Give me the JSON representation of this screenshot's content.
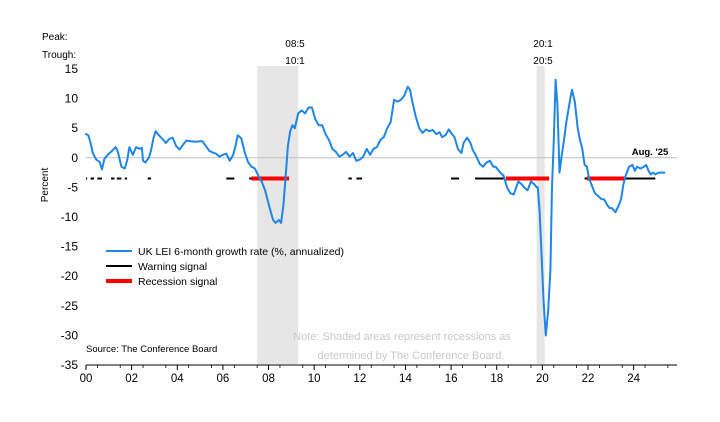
{
  "chart_data": {
    "type": "line",
    "ylabel": "Percent",
    "ylim": [
      -35,
      15
    ],
    "yticks": [
      15,
      10,
      5,
      0,
      -5,
      -10,
      -15,
      -20,
      -25,
      -30,
      -35
    ],
    "xlim": [
      2000,
      2025.9
    ],
    "xticks": [
      {
        "x": 2000,
        "label": "00"
      },
      {
        "x": 2002,
        "label": "02"
      },
      {
        "x": 2004,
        "label": "04"
      },
      {
        "x": 2006,
        "label": "06"
      },
      {
        "x": 2008,
        "label": "08"
      },
      {
        "x": 2010,
        "label": "10"
      },
      {
        "x": 2012,
        "label": "12"
      },
      {
        "x": 2014,
        "label": "14"
      },
      {
        "x": 2016,
        "label": "16"
      },
      {
        "x": 2018,
        "label": "18"
      },
      {
        "x": 2020,
        "label": "20"
      },
      {
        "x": 2022,
        "label": "22"
      },
      {
        "x": 2024,
        "label": "24"
      }
    ],
    "peak_trough_labels": [
      "Peak:",
      "Trough:"
    ],
    "recessions": [
      {
        "start": 2007.5,
        "end": 2009.3,
        "peak": "08:5",
        "trough": "10:1"
      },
      {
        "start": 2019.75,
        "end": 2020.1,
        "peak": "20:1",
        "trough": "20:5"
      }
    ],
    "series": [
      {
        "name": "UK LEI 6-month growth rate (%, annualized)",
        "color": "#1f86e3",
        "points": [
          [
            2000.0,
            4
          ],
          [
            2000.1,
            3.8
          ],
          [
            2000.2,
            2.5
          ],
          [
            2000.3,
            0.8
          ],
          [
            2000.45,
            -0.3
          ],
          [
            2000.6,
            -0.7
          ],
          [
            2000.7,
            -2
          ],
          [
            2000.8,
            -0.2
          ],
          [
            2000.95,
            0.5
          ],
          [
            2001.15,
            1.2
          ],
          [
            2001.3,
            1.8
          ],
          [
            2001.4,
            1
          ],
          [
            2001.55,
            -1.5
          ],
          [
            2001.7,
            -1.8
          ],
          [
            2001.8,
            -0.5
          ],
          [
            2001.9,
            1.8
          ],
          [
            2002.05,
            0.5
          ],
          [
            2002.2,
            1.8
          ],
          [
            2002.35,
            1.5
          ],
          [
            2002.45,
            1.7
          ],
          [
            2002.5,
            -0.5
          ],
          [
            2002.6,
            -0.8
          ],
          [
            2002.75,
            0
          ],
          [
            2002.85,
            1.2
          ],
          [
            2002.95,
            3.2
          ],
          [
            2003.05,
            4.5
          ],
          [
            2003.2,
            3.8
          ],
          [
            2003.35,
            3.2
          ],
          [
            2003.5,
            2.5
          ],
          [
            2003.65,
            3.2
          ],
          [
            2003.8,
            3.4
          ],
          [
            2003.95,
            2
          ],
          [
            2004.1,
            1.4
          ],
          [
            2004.25,
            2.2
          ],
          [
            2004.4,
            2.9
          ],
          [
            2004.6,
            2.8
          ],
          [
            2004.8,
            2.7
          ],
          [
            2005.0,
            2.8
          ],
          [
            2005.1,
            2.8
          ],
          [
            2005.25,
            2
          ],
          [
            2005.4,
            1.2
          ],
          [
            2005.55,
            0.9
          ],
          [
            2005.7,
            0.7
          ],
          [
            2005.85,
            0.2
          ],
          [
            2006.0,
            0.5
          ],
          [
            2006.15,
            0.7
          ],
          [
            2006.3,
            -0.5
          ],
          [
            2006.45,
            0.5
          ],
          [
            2006.55,
            2
          ],
          [
            2006.65,
            3.8
          ],
          [
            2006.8,
            3.3
          ],
          [
            2006.95,
            1
          ],
          [
            2007.1,
            -0.7
          ],
          [
            2007.25,
            -1.5
          ],
          [
            2007.4,
            -1.8
          ],
          [
            2007.55,
            -3
          ],
          [
            2007.7,
            -4
          ],
          [
            2007.85,
            -5.5
          ],
          [
            2007.95,
            -7
          ],
          [
            2008.05,
            -8.5
          ],
          [
            2008.2,
            -10.5
          ],
          [
            2008.3,
            -11
          ],
          [
            2008.45,
            -10.5
          ],
          [
            2008.55,
            -11
          ],
          [
            2008.65,
            -8
          ],
          [
            2008.75,
            -3
          ],
          [
            2008.85,
            2
          ],
          [
            2008.95,
            4.5
          ],
          [
            2009.05,
            5.5
          ],
          [
            2009.15,
            5
          ],
          [
            2009.3,
            7.5
          ],
          [
            2009.45,
            8
          ],
          [
            2009.6,
            7.5
          ],
          [
            2009.75,
            8.5
          ],
          [
            2009.9,
            8.5
          ],
          [
            2010.05,
            6.5
          ],
          [
            2010.2,
            5.5
          ],
          [
            2010.35,
            5.5
          ],
          [
            2010.5,
            4
          ],
          [
            2010.65,
            3
          ],
          [
            2010.8,
            1.5
          ],
          [
            2010.95,
            1
          ],
          [
            2011.1,
            0.2
          ],
          [
            2011.25,
            0.5
          ],
          [
            2011.4,
            1
          ],
          [
            2011.55,
            0.2
          ],
          [
            2011.7,
            0.8
          ],
          [
            2011.85,
            -0.5
          ],
          [
            2012.0,
            -0.3
          ],
          [
            2012.15,
            0.2
          ],
          [
            2012.3,
            1.5
          ],
          [
            2012.45,
            0.5
          ],
          [
            2012.6,
            1.5
          ],
          [
            2012.75,
            1.8
          ],
          [
            2012.9,
            3
          ],
          [
            2013.05,
            3.5
          ],
          [
            2013.2,
            5
          ],
          [
            2013.35,
            6
          ],
          [
            2013.5,
            9.8
          ],
          [
            2013.65,
            9.5
          ],
          [
            2013.8,
            9.8
          ],
          [
            2013.95,
            10.5
          ],
          [
            2014.1,
            12
          ],
          [
            2014.2,
            11.5
          ],
          [
            2014.3,
            9.5
          ],
          [
            2014.45,
            7
          ],
          [
            2014.6,
            5
          ],
          [
            2014.75,
            4.2
          ],
          [
            2014.9,
            4.8
          ],
          [
            2015.05,
            4.5
          ],
          [
            2015.2,
            4.7
          ],
          [
            2015.35,
            4
          ],
          [
            2015.5,
            4.3
          ],
          [
            2015.6,
            3.5
          ],
          [
            2015.75,
            3.8
          ],
          [
            2015.9,
            4.8
          ],
          [
            2016.0,
            4.2
          ],
          [
            2016.15,
            3.5
          ],
          [
            2016.3,
            1.5
          ],
          [
            2016.45,
            0.8
          ],
          [
            2016.55,
            2.5
          ],
          [
            2016.7,
            3.4
          ],
          [
            2016.85,
            2.5
          ],
          [
            2016.95,
            1.3
          ],
          [
            2017.1,
            0.3
          ],
          [
            2017.25,
            -1
          ],
          [
            2017.4,
            -1.5
          ],
          [
            2017.55,
            -0.8
          ],
          [
            2017.7,
            -0.5
          ],
          [
            2017.85,
            -1.5
          ],
          [
            2017.95,
            -1.5
          ],
          [
            2018.05,
            -2
          ],
          [
            2018.15,
            -2.5
          ],
          [
            2018.3,
            -3
          ],
          [
            2018.45,
            -5
          ],
          [
            2018.6,
            -6
          ],
          [
            2018.75,
            -6.2
          ],
          [
            2018.85,
            -5
          ],
          [
            2018.95,
            -4
          ],
          [
            2019.1,
            -4.5
          ],
          [
            2019.2,
            -5
          ],
          [
            2019.35,
            -5.5
          ],
          [
            2019.5,
            -4
          ],
          [
            2019.65,
            -4.5
          ],
          [
            2019.75,
            -5
          ],
          [
            2019.8,
            -5
          ],
          [
            2019.88,
            -9
          ],
          [
            2019.95,
            -15
          ],
          [
            2020.05,
            -24
          ],
          [
            2020.15,
            -30
          ],
          [
            2020.25,
            -26
          ],
          [
            2020.35,
            -19
          ],
          [
            2020.42,
            -5
          ],
          [
            2020.5,
            3
          ],
          [
            2020.58,
            13.2
          ],
          [
            2020.66,
            9
          ],
          [
            2020.75,
            -2.5
          ],
          [
            2020.85,
            0.5
          ],
          [
            2020.95,
            3
          ],
          [
            2021.05,
            6
          ],
          [
            2021.2,
            9.5
          ],
          [
            2021.3,
            11.5
          ],
          [
            2021.42,
            9.5
          ],
          [
            2021.55,
            5
          ],
          [
            2021.65,
            3
          ],
          [
            2021.75,
            1.5
          ],
          [
            2021.85,
            -1.2
          ],
          [
            2021.95,
            -1.5
          ],
          [
            2022.05,
            -3.5
          ],
          [
            2022.15,
            -4.5
          ],
          [
            2022.3,
            -6
          ],
          [
            2022.45,
            -6.5
          ],
          [
            2022.6,
            -7
          ],
          [
            2022.7,
            -7
          ],
          [
            2022.85,
            -8
          ],
          [
            2022.95,
            -8.5
          ],
          [
            2023.05,
            -8.5
          ],
          [
            2023.2,
            -9.2
          ],
          [
            2023.35,
            -8
          ],
          [
            2023.45,
            -7
          ],
          [
            2023.55,
            -4.5
          ],
          [
            2023.65,
            -3
          ],
          [
            2023.8,
            -1.5
          ],
          [
            2023.95,
            -1.2
          ],
          [
            2024.05,
            -2.2
          ],
          [
            2024.15,
            -1.5
          ],
          [
            2024.3,
            -1.8
          ],
          [
            2024.45,
            -1.5
          ],
          [
            2024.55,
            -1.2
          ],
          [
            2024.65,
            -2.2
          ],
          [
            2024.75,
            -2.8
          ],
          [
            2024.85,
            -2.5
          ],
          [
            2024.95,
            -2.8
          ],
          [
            2025.1,
            -2.5
          ],
          [
            2025.35,
            -2.5
          ]
        ]
      },
      {
        "name": "Warning signal",
        "color": "#000000",
        "value": -3.5,
        "segments": [
          [
            2000.0,
            2000.05
          ],
          [
            2000.2,
            2000.35
          ],
          [
            2000.5,
            2000.7
          ],
          [
            2001.1,
            2001.25
          ],
          [
            2001.35,
            2001.55
          ],
          [
            2001.7,
            2001.8
          ],
          [
            2002.7,
            2002.85
          ],
          [
            2006.15,
            2006.5
          ],
          [
            2007.15,
            2007.5
          ],
          [
            2011.5,
            2011.65
          ],
          [
            2011.85,
            2012.1
          ],
          [
            2016.0,
            2016.35
          ],
          [
            2017.05,
            2018.35
          ],
          [
            2021.85,
            2023.45
          ],
          [
            2023.55,
            2024.95
          ]
        ]
      },
      {
        "name": "Recession signal",
        "color": "#ff0000",
        "value": -3.5,
        "segments": [
          [
            2007.25,
            2008.9
          ],
          [
            2018.4,
            2020.3
          ],
          [
            2021.95,
            2023.65
          ]
        ]
      }
    ],
    "annotation": {
      "text": "Aug. '25",
      "x": 2025.0,
      "y": 0.2
    },
    "note": [
      "Note: Shaded areas represent recessions as",
      "determined by The Conference Board."
    ],
    "source": "Source: The Conference Board"
  }
}
